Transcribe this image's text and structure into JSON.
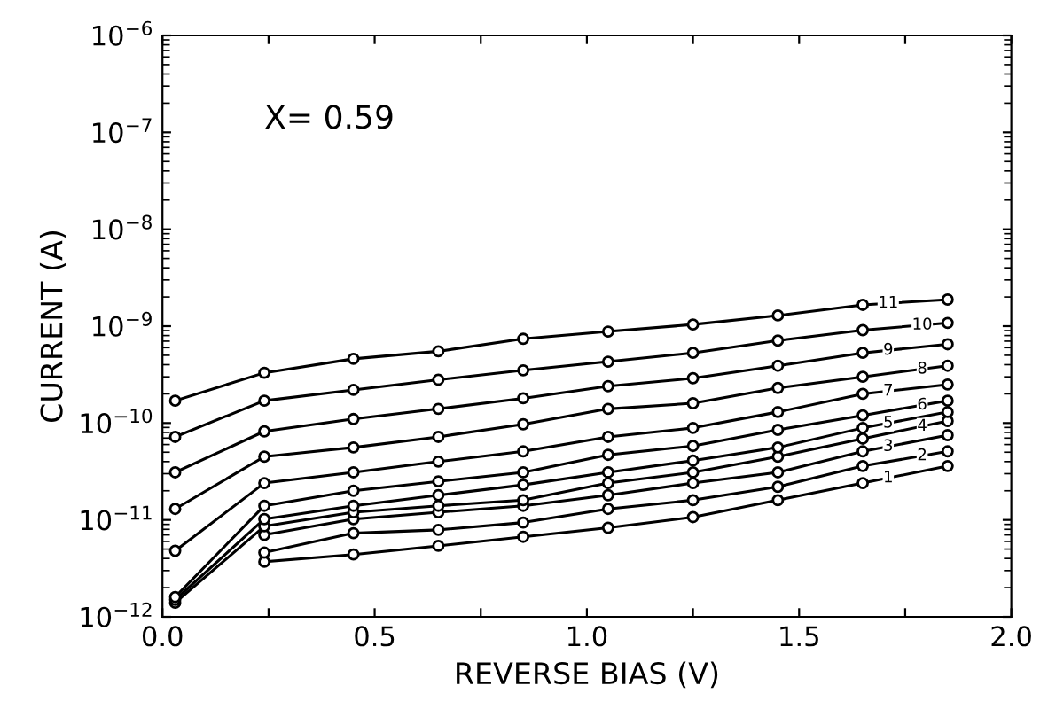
{
  "chart_data": {
    "type": "line",
    "xlabel": "REVERSE BIAS (V)",
    "ylabel": "CURRENT (A)",
    "annotations": [
      "X= 0.59"
    ],
    "x": [
      0.03,
      0.24,
      0.45,
      0.65,
      0.85,
      1.05,
      1.25,
      1.45,
      1.65,
      1.85
    ],
    "series": [
      {
        "name": "1",
        "color": "#000000",
        "values": [
          null,
          3.7e-12,
          4.4e-12,
          5.4e-12,
          6.7e-12,
          8.3e-12,
          1.07e-11,
          1.6e-11,
          2.4e-11,
          3.6e-11
        ]
      },
      {
        "name": "2",
        "color": "#000000",
        "values": [
          null,
          4.6e-12,
          7.3e-12,
          7.9e-12,
          9.4e-12,
          1.3e-11,
          1.6e-11,
          2.2e-11,
          3.6e-11,
          5.1e-11
        ]
      },
      {
        "name": "3",
        "color": "#000000",
        "values": [
          null,
          7e-12,
          1.02e-11,
          1.2e-11,
          1.4e-11,
          1.8e-11,
          2.4e-11,
          3.1e-11,
          5.1e-11,
          7.5e-11
        ]
      },
      {
        "name": "4",
        "color": "#000000",
        "values": [
          1.4e-12,
          8.6e-12,
          1.2e-11,
          1.4e-11,
          1.6e-11,
          2.4e-11,
          3.1e-11,
          4.5e-11,
          6.9e-11,
          1.05e-10
        ]
      },
      {
        "name": "5",
        "color": "#000000",
        "values": [
          1.5e-12,
          1.02e-11,
          1.4e-11,
          1.8e-11,
          2.3e-11,
          3.1e-11,
          4.1e-11,
          5.6e-11,
          8.9e-11,
          1.3e-10
        ]
      },
      {
        "name": "6",
        "color": "#000000",
        "values": [
          1.6e-12,
          1.4e-11,
          2e-11,
          2.5e-11,
          3.1e-11,
          4.7e-11,
          5.8e-11,
          8.5e-11,
          1.2e-10,
          1.7e-10
        ]
      },
      {
        "name": "7",
        "color": "#000000",
        "values": [
          4.8e-12,
          2.4e-11,
          3.1e-11,
          4e-11,
          5.1e-11,
          7.2e-11,
          8.9e-11,
          1.3e-10,
          2e-10,
          2.5e-10
        ]
      },
      {
        "name": "8",
        "color": "#000000",
        "values": [
          1.3e-11,
          4.5e-11,
          5.6e-11,
          7.2e-11,
          9.7e-11,
          1.4e-10,
          1.6e-10,
          2.3e-10,
          3e-10,
          3.9e-10
        ]
      },
      {
        "name": "9",
        "color": "#000000",
        "values": [
          3.1e-11,
          8.2e-11,
          1.1e-10,
          1.4e-10,
          1.8e-10,
          2.4e-10,
          2.9e-10,
          3.9e-10,
          5.3e-10,
          6.5e-10
        ]
      },
      {
        "name": "10",
        "color": "#000000",
        "values": [
          7.2e-11,
          1.7e-10,
          2.2e-10,
          2.8e-10,
          3.5e-10,
          4.3e-10,
          5.3e-10,
          7.1e-10,
          9.1e-10,
          1.08e-09
        ]
      },
      {
        "name": "11",
        "color": "#000000",
        "values": [
          1.7e-10,
          3.3e-10,
          4.6e-10,
          5.5e-10,
          7.4e-10,
          8.8e-10,
          1.04e-09,
          1.29e-09,
          1.66e-09,
          1.88e-09
        ]
      }
    ],
    "log": "y",
    "xlim": [
      0.0,
      2.0
    ],
    "ylim": [
      1e-12,
      1e-06
    ],
    "xticks": [
      {
        "value": 0,
        "label": "0.0"
      },
      {
        "value": 0.25,
        "label": null
      },
      0.5,
      {
        "value": 0.75,
        "label": null
      },
      {
        "value": 1,
        "label": "1.0"
      },
      {
        "value": 1.25,
        "label": null
      },
      1.5,
      {
        "value": 1.75,
        "label": null
      },
      {
        "value": 2,
        "label": "2.0"
      }
    ],
    "yticks": [
      {
        "value": 1e-12,
        "label": "10$^{−12}$"
      },
      {
        "value": 1e-11,
        "label": "10$^{−11}$"
      },
      {
        "value": 1e-10,
        "label": "10$^{−10}$"
      },
      {
        "value": 1e-09,
        "label": "10$^{−9}$"
      },
      {
        "value": 1e-08,
        "label": "10$^{−8}$"
      },
      {
        "value": 1e-07,
        "label": "10$^{−7}$"
      },
      {
        "value": 1e-06,
        "label": "10$^{−6}$"
      }
    ],
    "marker": "circle",
    "line_style": "solid",
    "grid": false,
    "legend": false
  }
}
